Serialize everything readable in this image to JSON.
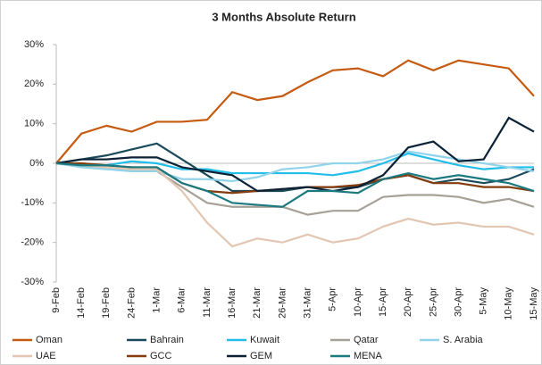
{
  "chart_data": {
    "type": "line",
    "title": "3 Months Absolute Return",
    "categories": [
      "9-Feb",
      "14-Feb",
      "19-Feb",
      "24-Feb",
      "1-Mar",
      "6-Mar",
      "11-Mar",
      "16-Mar",
      "21-Mar",
      "26-Mar",
      "31-Mar",
      "5-Apr",
      "10-Apr",
      "15-Apr",
      "20-Apr",
      "25-Apr",
      "30-Apr",
      "5-May",
      "10-May",
      "15-May"
    ],
    "series": [
      {
        "name": "Oman",
        "color": "#c55a11",
        "values": [
          0,
          7.5,
          9.5,
          8,
          10.5,
          10.5,
          11,
          18,
          16,
          17,
          20.5,
          23.5,
          24,
          22,
          26,
          23.5,
          26,
          25,
          24,
          17
        ]
      },
      {
        "name": "Bahrain",
        "color": "#1b4a5a",
        "values": [
          0,
          1,
          2,
          3.5,
          5,
          1,
          -3,
          -7,
          -7,
          -7,
          -6,
          -6,
          -6,
          -4,
          -3,
          -5,
          -4,
          -5,
          -4,
          -1.5
        ]
      },
      {
        "name": "Kuwait",
        "color": "#22bde8",
        "values": [
          0,
          -0.5,
          -0.5,
          0.5,
          0,
          -1.5,
          -1.5,
          -2.5,
          -2.5,
          -2.5,
          -2.5,
          -3,
          -2,
          0,
          2.5,
          1,
          -0.5,
          -1.5,
          -1,
          -1
        ]
      },
      {
        "name": "Qatar",
        "color": "#a6a096",
        "values": [
          0,
          -0.5,
          -1,
          -2,
          -2,
          -6,
          -10,
          -11,
          -11,
          -11,
          -13,
          -12,
          -12,
          -8.5,
          -8,
          -8,
          -8.5,
          -10,
          -9,
          -11
        ]
      },
      {
        "name": "S. Arabia",
        "color": "#92d3ec",
        "values": [
          0,
          -1,
          -1.5,
          -2,
          -2,
          -4,
          -4,
          -4.5,
          -3.5,
          -1.5,
          -1,
          0,
          0,
          1,
          3,
          2,
          1,
          0,
          -1,
          -2
        ]
      },
      {
        "name": "UAE",
        "color": "#e2c6b2",
        "values": [
          0,
          -0.5,
          -1,
          -1.5,
          -1.5,
          -7,
          -15,
          -21,
          -19,
          -20,
          -18,
          -20,
          -19,
          -16,
          -14,
          -15.5,
          -15,
          -16,
          -16,
          -18
        ]
      },
      {
        "name": "GCC",
        "color": "#843c0c",
        "values": [
          0,
          0,
          -0.5,
          -1,
          -1,
          -5,
          -7,
          -7.5,
          -7,
          -6.5,
          -6,
          -6,
          -5.5,
          -4,
          -3,
          -5,
          -5,
          -6,
          -6,
          -7
        ]
      },
      {
        "name": "GEM",
        "color": "#0b2236",
        "values": [
          0,
          1,
          1,
          1.5,
          1.5,
          -1,
          -2,
          -3,
          -7,
          -6.5,
          -6,
          -7,
          -6,
          -3,
          4,
          5.5,
          0.5,
          1,
          11.5,
          8
        ]
      },
      {
        "name": "MENA",
        "color": "#1a7a80",
        "values": [
          0,
          -0.5,
          -0.5,
          -1,
          -1,
          -5,
          -7,
          -10,
          -10.5,
          -11,
          -7,
          -7,
          -7.5,
          -4,
          -2.5,
          -4,
          -3,
          -4,
          -5,
          -7
        ]
      }
    ],
    "ylim": [
      -30,
      30
    ],
    "yticks": [
      {
        "value": 30,
        "label": "30%"
      },
      {
        "value": 20,
        "label": "20%"
      },
      {
        "value": 10,
        "label": "10%"
      },
      {
        "value": 0,
        "label": "0%"
      },
      {
        "value": -10,
        "label": "-10%"
      },
      {
        "value": -20,
        "label": "-20%"
      },
      {
        "value": -30,
        "label": "-30%"
      }
    ],
    "grid": false,
    "legend": "bottom"
  }
}
